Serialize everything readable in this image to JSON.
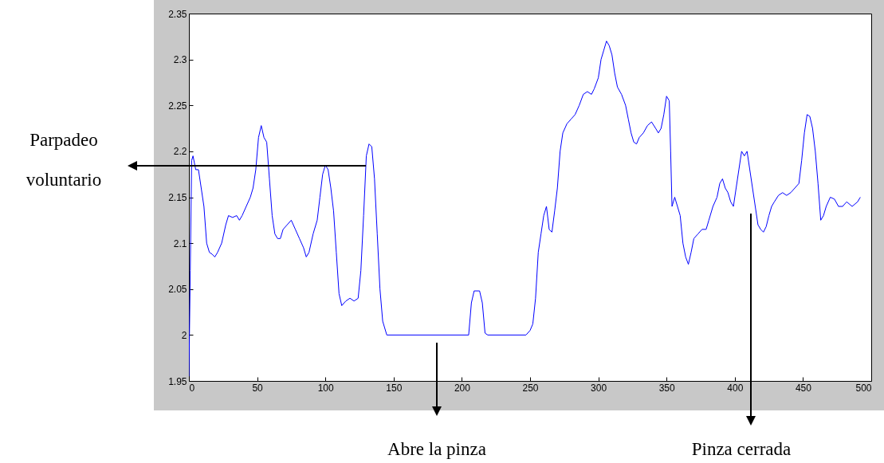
{
  "chart_data": {
    "type": "line",
    "color": "#0000ff",
    "xlim": [
      0,
      500
    ],
    "ylim": [
      1.95,
      2.35
    ],
    "xticks": [
      0,
      50,
      100,
      150,
      200,
      250,
      300,
      350,
      400,
      450,
      500
    ],
    "yticks": [
      1.95,
      2,
      2.05,
      2.1,
      2.15,
      2.2,
      2.25,
      2.3,
      2.35
    ],
    "grid": false,
    "marker": "none",
    "line_style": "solid",
    "x": [
      0,
      1,
      2,
      3,
      5,
      7,
      9,
      11,
      13,
      15,
      17,
      19,
      21,
      24,
      27,
      29,
      32,
      35,
      37,
      39,
      42,
      45,
      47,
      49,
      51,
      53,
      55,
      57,
      59,
      61,
      63,
      65,
      67,
      69,
      72,
      75,
      78,
      81,
      84,
      86,
      88,
      91,
      94,
      96,
      98,
      100,
      102,
      104,
      106,
      108,
      110,
      112,
      115,
      118,
      121,
      124,
      126,
      128,
      130,
      132,
      134,
      136,
      138,
      140,
      142,
      145,
      205,
      207,
      209,
      213,
      215,
      217,
      219,
      247,
      250,
      252,
      254,
      256,
      258,
      260,
      262,
      264,
      266,
      268,
      270,
      272,
      274,
      277,
      280,
      283,
      286,
      289,
      292,
      295,
      297,
      300,
      302,
      304,
      306,
      308,
      310,
      312,
      314,
      317,
      320,
      322,
      324,
      326,
      328,
      330,
      333,
      336,
      339,
      342,
      344,
      346,
      348,
      350,
      352,
      353,
      354,
      356,
      358,
      360,
      362,
      364,
      366,
      368,
      370,
      373,
      376,
      379,
      381,
      384,
      387,
      389,
      391,
      393,
      395,
      397,
      399,
      401,
      403,
      405,
      407,
      409,
      411,
      413,
      415,
      417,
      419,
      421,
      423,
      425,
      427,
      429,
      432,
      435,
      438,
      441,
      444,
      447,
      449,
      451,
      453,
      455,
      457,
      459,
      461,
      463,
      465,
      467,
      470,
      473,
      476,
      479,
      482,
      486,
      490,
      492
    ],
    "values": [
      1.955,
      2.07,
      2.19,
      2.195,
      2.18,
      2.18,
      2.16,
      2.14,
      2.1,
      2.09,
      2.088,
      2.085,
      2.09,
      2.1,
      2.12,
      2.13,
      2.128,
      2.13,
      2.125,
      2.13,
      2.14,
      2.15,
      2.16,
      2.18,
      2.215,
      2.228,
      2.215,
      2.21,
      2.17,
      2.13,
      2.11,
      2.105,
      2.105,
      2.115,
      2.12,
      2.125,
      2.115,
      2.105,
      2.095,
      2.085,
      2.09,
      2.11,
      2.125,
      2.15,
      2.175,
      2.185,
      2.18,
      2.16,
      2.135,
      2.09,
      2.045,
      2.032,
      2.037,
      2.04,
      2.037,
      2.04,
      2.07,
      2.13,
      2.195,
      2.208,
      2.205,
      2.17,
      2.11,
      2.05,
      2.015,
      2.0,
      2.0,
      2.035,
      2.048,
      2.048,
      2.035,
      2.002,
      2.0,
      2.0,
      2.005,
      2.012,
      2.04,
      2.09,
      2.11,
      2.13,
      2.14,
      2.115,
      2.112,
      2.135,
      2.16,
      2.2,
      2.22,
      2.23,
      2.235,
      2.24,
      2.25,
      2.262,
      2.265,
      2.262,
      2.268,
      2.28,
      2.3,
      2.31,
      2.32,
      2.315,
      2.305,
      2.285,
      2.27,
      2.262,
      2.25,
      2.235,
      2.22,
      2.21,
      2.208,
      2.215,
      2.22,
      2.228,
      2.232,
      2.225,
      2.22,
      2.225,
      2.24,
      2.26,
      2.255,
      2.2,
      2.14,
      2.15,
      2.14,
      2.13,
      2.1,
      2.085,
      2.077,
      2.09,
      2.105,
      2.11,
      2.115,
      2.115,
      2.125,
      2.14,
      2.15,
      2.165,
      2.17,
      2.16,
      2.155,
      2.145,
      2.14,
      2.16,
      2.18,
      2.2,
      2.195,
      2.2,
      2.18,
      2.16,
      2.14,
      2.12,
      2.115,
      2.112,
      2.118,
      2.13,
      2.14,
      2.145,
      2.152,
      2.155,
      2.152,
      2.155,
      2.16,
      2.165,
      2.19,
      2.22,
      2.24,
      2.238,
      2.225,
      2.2,
      2.165,
      2.125,
      2.13,
      2.14,
      2.15,
      2.148,
      2.14,
      2.14,
      2.145,
      2.14,
      2.145,
      2.15
    ],
    "annotations": [
      "Parpadeo voluntario",
      "Abre la pinza",
      "Pinza cerrada"
    ]
  }
}
